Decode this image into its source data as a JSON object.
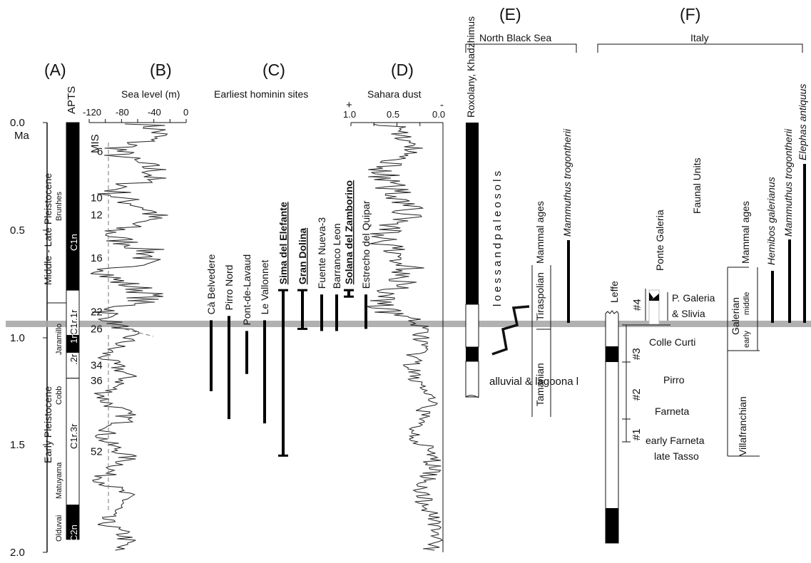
{
  "panels": {
    "A": "(A)",
    "B": "(B)",
    "C": "(C)",
    "D": "(D)",
    "E": "(E)",
    "F": "(F)"
  },
  "time_axis": {
    "unit": "Ma",
    "ticks": [
      "0.0",
      "0.5",
      "1.0",
      "1.5",
      "2.0"
    ]
  },
  "panelA": {
    "epoch_upper": "Middle - Late Pleistocene",
    "epoch_lower": "Early Pleistocene",
    "apts": "APTS",
    "chrons": [
      "Brunhes",
      "Jaramillo",
      "Cobb",
      "Matuyama",
      "Olduvai"
    ],
    "subchrons": [
      "C1n",
      "C1r.1r",
      "1n",
      ".2r",
      "C1r.3r",
      "C2n"
    ],
    "reversals": [
      {
        "top": 0,
        "bottom": 0.78,
        "normal": true
      },
      {
        "top": 0.78,
        "bottom": 0.99,
        "normal": false
      },
      {
        "top": 0.99,
        "bottom": 1.07,
        "normal": true
      },
      {
        "top": 1.07,
        "bottom": 1.19,
        "normal": false
      },
      {
        "top": 1.19,
        "bottom": 1.78,
        "normal": false
      },
      {
        "top": 1.78,
        "bottom": 1.94,
        "normal": true
      }
    ]
  },
  "panelB": {
    "title": "Sea level (m)",
    "ticks": [
      "-120",
      "-80",
      "-40",
      "0"
    ],
    "mis_label": "MIS",
    "mis": [
      {
        "label": "6",
        "age": 0.135
      },
      {
        "label": "10",
        "age": 0.35
      },
      {
        "label": "12",
        "age": 0.43
      },
      {
        "label": "16",
        "age": 0.63
      },
      {
        "label": "22",
        "age": 0.88
      },
      {
        "label": "26",
        "age": 0.96
      },
      {
        "label": "34",
        "age": 1.13
      },
      {
        "label": "36",
        "age": 1.2
      },
      {
        "label": "52",
        "age": 1.53
      }
    ]
  },
  "panelC": {
    "title": "Earliest hominin sites",
    "sites": [
      {
        "name": "Cà Belvedere",
        "top": 0.92,
        "bottom": 1.25,
        "bold": false
      },
      {
        "name": "Pirro Nord",
        "top": 0.9,
        "bottom": 1.38,
        "bold": false
      },
      {
        "name": "Pont-de-Lavaud",
        "top": 0.97,
        "bottom": 1.17,
        "bold": false
      },
      {
        "name": "Le Vallonnet",
        "top": 0.92,
        "bottom": 1.4,
        "bold": false
      },
      {
        "name": "Sima del Elefante",
        "top": 0.78,
        "bottom": 1.55,
        "bold": true
      },
      {
        "name": "Gran Dolina",
        "top": 0.78,
        "bottom": 0.96,
        "bold": true
      },
      {
        "name": "Fuente Nueva-3",
        "top": 0.8,
        "bottom": 0.97,
        "bold": false
      },
      {
        "name": "Barranco Leon",
        "top": 0.8,
        "bottom": 0.97,
        "bold": false
      },
      {
        "name": "Solana del Zamborino",
        "top": 0.78,
        "bottom": 0.81,
        "bold": true
      },
      {
        "name": "Estrecho del Quipar",
        "top": 0.8,
        "bottom": 0.96,
        "bold": false
      }
    ]
  },
  "panelD": {
    "title": "Sahara dust",
    "plus": "+",
    "minus": "-",
    "ticks": [
      "1.0",
      "0.5",
      "0.0"
    ]
  },
  "panelE": {
    "region": "North Black Sea",
    "column_label": "Roxolany, Khadzhimus",
    "loess": "l o e s s   a n d   p a l e o s o l s",
    "alluvial": "alluvial & lagoona l",
    "mammal_ages": "Mammal ages",
    "tiraspolian": "Tiraspolian",
    "tamanian": "Tamanian",
    "species": "Mammuthus trogontherii"
  },
  "panelF": {
    "region": "Italy",
    "leffe": "Leffe",
    "ponte": "Ponte Galeria",
    "faunal_title": "Faunal Units",
    "units": [
      "#4",
      "#3",
      "#2",
      "#1"
    ],
    "faunal": [
      "P. Galeria",
      "& Slivia",
      "Colle Curti",
      "Pirro",
      "Farneta",
      "early Farneta",
      "late Tasso"
    ],
    "mammal_ages": "Mammal ages",
    "galerian": "Galerian",
    "middle": "middle",
    "early": "early",
    "villafranchian": "Villafranchian",
    "species": [
      "Hemibos galerianus",
      "Mammuthus trogontherii",
      "Elephas antiquus"
    ]
  }
}
